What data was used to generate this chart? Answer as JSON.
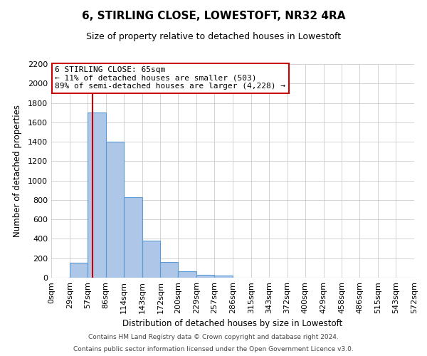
{
  "title": "6, STIRLING CLOSE, LOWESTOFT, NR32 4RA",
  "subtitle": "Size of property relative to detached houses in Lowestoft",
  "xlabel": "Distribution of detached houses by size in Lowestoft",
  "ylabel": "Number of detached properties",
  "bar_edges": [
    0,
    29,
    57,
    86,
    114,
    143,
    172,
    200,
    229,
    257,
    286,
    315,
    343,
    372,
    400,
    429,
    458,
    486,
    515,
    543,
    572
  ],
  "bar_heights": [
    0,
    155,
    1700,
    1400,
    830,
    380,
    160,
    65,
    30,
    25,
    0,
    0,
    0,
    0,
    0,
    0,
    0,
    0,
    0,
    0
  ],
  "bar_color": "#aec6e8",
  "bar_edgecolor": "#5b9bd5",
  "vline_x": 65,
  "vline_color": "#cc0000",
  "annotation_line1": "6 STIRLING CLOSE: 65sqm",
  "annotation_line2": "← 11% of detached houses are smaller (503)",
  "annotation_line3": "89% of semi-detached houses are larger (4,228) →",
  "annotation_box_color": "#ffffff",
  "annotation_box_edgecolor": "#cc0000",
  "ylim": [
    0,
    2200
  ],
  "xlim": [
    0,
    572
  ],
  "tick_labels": [
    "0sqm",
    "29sqm",
    "57sqm",
    "86sqm",
    "114sqm",
    "143sqm",
    "172sqm",
    "200sqm",
    "229sqm",
    "257sqm",
    "286sqm",
    "315sqm",
    "343sqm",
    "372sqm",
    "400sqm",
    "429sqm",
    "458sqm",
    "486sqm",
    "515sqm",
    "543sqm",
    "572sqm"
  ],
  "tick_positions": [
    0,
    29,
    57,
    86,
    114,
    143,
    172,
    200,
    229,
    257,
    286,
    315,
    343,
    372,
    400,
    429,
    458,
    486,
    515,
    543,
    572
  ],
  "ytick_positions": [
    0,
    200,
    400,
    600,
    800,
    1000,
    1200,
    1400,
    1600,
    1800,
    2000,
    2200
  ],
  "footer_line1": "Contains HM Land Registry data © Crown copyright and database right 2024.",
  "footer_line2": "Contains public sector information licensed under the Open Government Licence v3.0.",
  "background_color": "#ffffff",
  "grid_color": "#cccccc",
  "figsize": [
    6.0,
    5.0
  ],
  "dpi": 100
}
